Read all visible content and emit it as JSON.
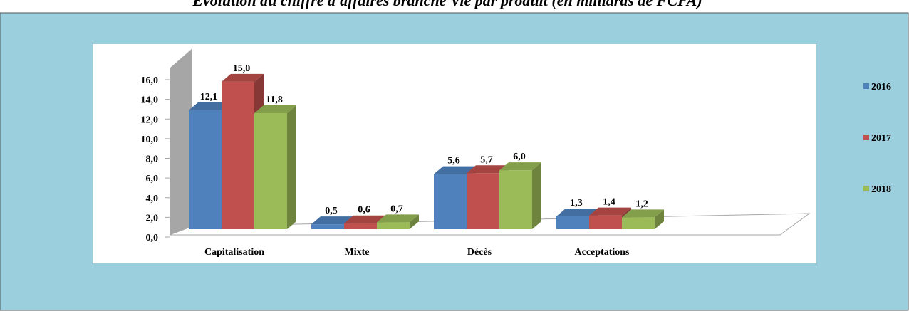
{
  "chart_data": {
    "type": "bar3d",
    "title": "Évolution du chiffre d'affaires branche Vie par produit (en milliards de FCFA)",
    "categories": [
      "Capitalisation",
      "Mixte",
      "Décès",
      "Acceptations"
    ],
    "series": [
      {
        "name": "2016",
        "color": "#4f81bd",
        "values": [
          12.1,
          0.5,
          5.6,
          1.3
        ],
        "value_labels": [
          "12,1",
          "0,5",
          "5,6",
          "1,3"
        ]
      },
      {
        "name": "2017",
        "color": "#c0504d",
        "values": [
          15.0,
          0.6,
          5.7,
          1.4
        ],
        "value_labels": [
          "15,0",
          "0,6",
          "5,7",
          "1,4"
        ]
      },
      {
        "name": "2018",
        "color": "#9bbb59",
        "values": [
          11.8,
          0.7,
          6.0,
          1.2
        ],
        "value_labels": [
          "11,8",
          "0,7",
          "6,0",
          "1,2"
        ]
      }
    ],
    "ylim": [
      0,
      16
    ],
    "yticks": [
      {
        "value": 0,
        "label": "0,0"
      },
      {
        "value": 2,
        "label": "2,0"
      },
      {
        "value": 4,
        "label": "4,0"
      },
      {
        "value": 6,
        "label": "6,0"
      },
      {
        "value": 8,
        "label": "8,0"
      },
      {
        "value": 10,
        "label": "10,0"
      },
      {
        "value": 12,
        "label": "12,0"
      },
      {
        "value": 14,
        "label": "14,0"
      },
      {
        "value": 16,
        "label": "16,0"
      }
    ],
    "legend": "right"
  }
}
